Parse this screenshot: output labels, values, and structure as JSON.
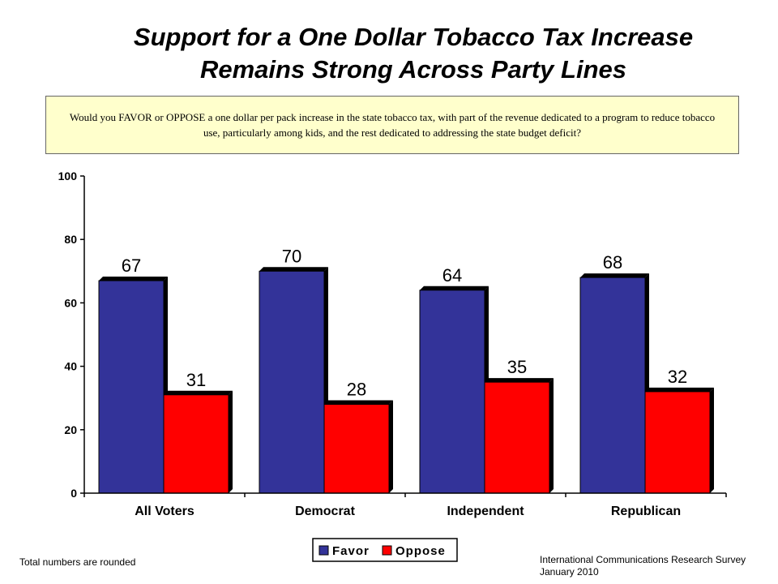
{
  "title_line1": "Support for a One Dollar Tobacco Tax Increase",
  "title_line2": "Remains Strong Across Party Lines",
  "question": "Would you FAVOR or OPPOSE a one dollar per pack increase in the state tobacco tax, with part of the revenue dedicated to a program to reduce tobacco use, particularly among kids, and the rest dedicated to addressing the state budget deficit?",
  "footnote": "Total numbers are rounded",
  "source_line1": "International Communications Research Survey",
  "source_line2": "January 2010",
  "chart_data": {
    "type": "bar",
    "categories": [
      "All Voters",
      "Democrat",
      "Independent",
      "Republican"
    ],
    "series": [
      {
        "name": "Favor",
        "values": [
          67,
          70,
          64,
          68
        ],
        "color": "#333399"
      },
      {
        "name": "Oppose",
        "values": [
          31,
          28,
          35,
          32
        ],
        "color": "#ff0000"
      }
    ],
    "ylim": [
      0,
      100
    ],
    "yticks": [
      0,
      20,
      40,
      60,
      80,
      100
    ],
    "xlabel": "",
    "ylabel": "",
    "grid": false,
    "legend_position": "bottom"
  }
}
